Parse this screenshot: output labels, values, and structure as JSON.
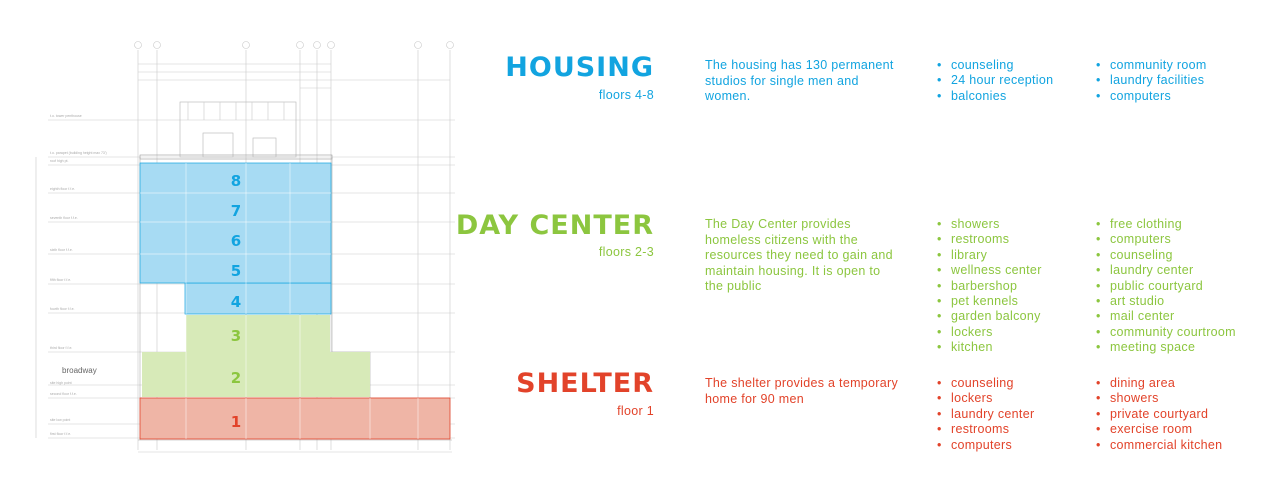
{
  "colors": {
    "housing": "#12a4e0",
    "day_center": "#8cc63f",
    "shelter": "#e2432a"
  },
  "diagram": {
    "street_label": "broadway",
    "floor_labels": [
      "1",
      "2",
      "3",
      "4",
      "5",
      "6",
      "7",
      "8"
    ]
  },
  "sections": {
    "housing": {
      "title": "HOUSING",
      "subtitle": "floors 4-8",
      "description": "The housing has 130 permanent studios for single men and women.",
      "list_a": [
        "counseling",
        "24 hour reception",
        "balconies"
      ],
      "list_b": [
        "community room",
        "laundry facilities",
        "computers"
      ]
    },
    "day_center": {
      "title": "DAY CENTER",
      "subtitle": "floors 2-3",
      "description": "The Day Center provides homeless citizens with the resources they need to gain and maintain housing.  It is open to the public",
      "list_a": [
        "showers",
        "restrooms",
        "library",
        "wellness center",
        "barbershop",
        "pet kennels",
        "garden balcony",
        "lockers",
        "kitchen"
      ],
      "list_b": [
        "free clothing",
        "computers",
        "counseling",
        "laundry center",
        "public courtyard",
        "art studio",
        "mail center",
        "community courtroom",
        "meeting space"
      ]
    },
    "shelter": {
      "title": "SHELTER",
      "subtitle": "floor 1",
      "description": "The shelter provides a temporary home for 90 men",
      "list_a": [
        "counseling",
        "lockers",
        "laundry center",
        "restrooms",
        "computers"
      ],
      "list_b": [
        "dining area",
        "showers",
        "private courtyard",
        "exercise room",
        "commercial kitchen"
      ]
    }
  }
}
